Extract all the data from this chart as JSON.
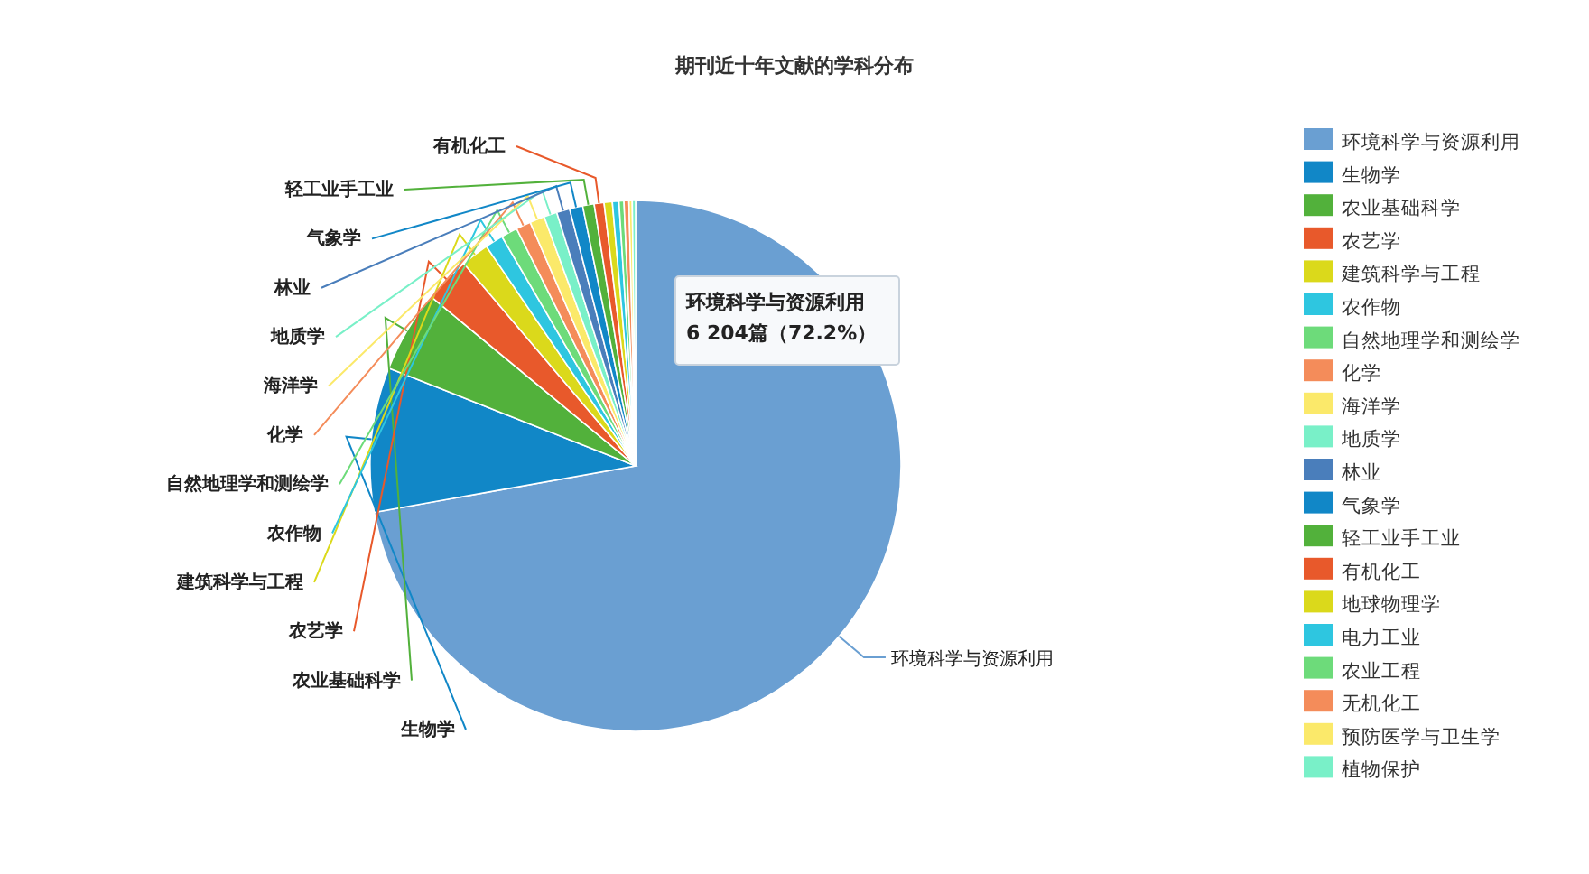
{
  "chart_data": {
    "type": "pie",
    "title": "期刊近十年文献的学科分布",
    "categories": [
      "环境科学与资源利用",
      "生物学",
      "农业基础科学",
      "农艺学",
      "建筑科学与工程",
      "农作物",
      "自然地理学和测绘学",
      "化学",
      "海洋学",
      "地质学",
      "林业",
      "气象学",
      "轻工业手工业",
      "有机化工",
      "地球物理学",
      "电力工业",
      "农业工程",
      "无机化工",
      "预防医学与卫生学",
      "植物保护"
    ],
    "values": [
      72.2,
      8.8,
      5.0,
      2.8,
      1.7,
      1.1,
      1.0,
      0.9,
      0.9,
      0.8,
      0.8,
      0.8,
      0.7,
      0.6,
      0.5,
      0.4,
      0.3,
      0.3,
      0.2,
      0.2
    ],
    "colors": [
      "#6a9fd2",
      "#1187c7",
      "#52b13b",
      "#e8592b",
      "#dbd91b",
      "#2ec6e0",
      "#6ddb7a",
      "#f48c5a",
      "#fbe96a",
      "#79f0c8",
      "#4a7ebb",
      "#1187c7",
      "#52b13b",
      "#e8592b",
      "#dbd91b",
      "#2ec6e0",
      "#6ddb7a",
      "#f48c5a",
      "#fbe96a",
      "#79f0c8"
    ],
    "legend": "right",
    "annotations": [
      "环境科学与资源利用\n6 204篇（72.2%）"
    ]
  }
}
